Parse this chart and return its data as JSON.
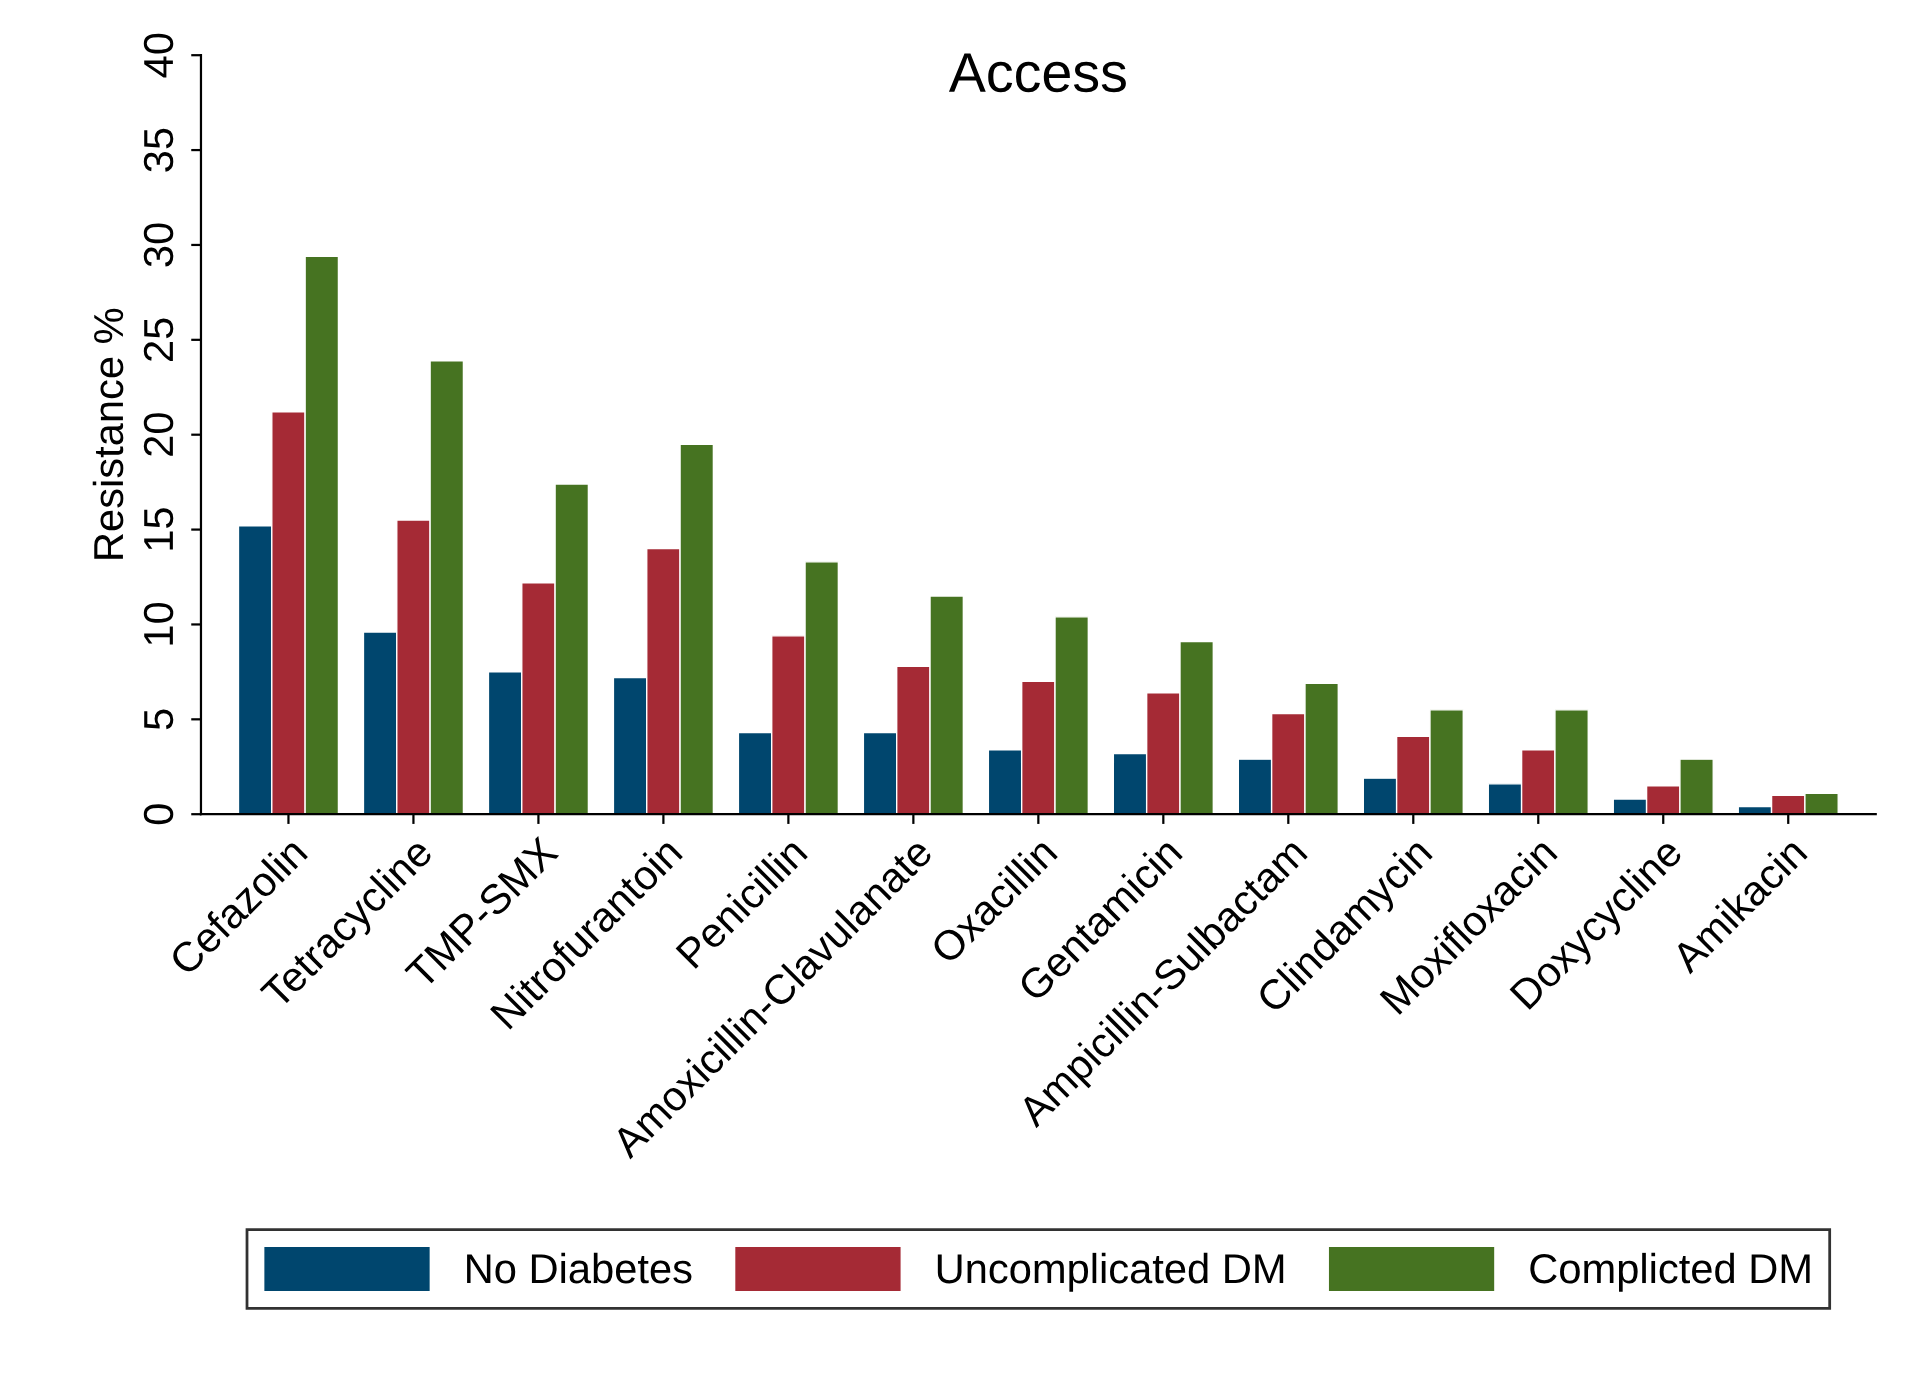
{
  "chart_data": {
    "type": "bar",
    "title": "Access",
    "ylabel": "Resistance %",
    "categories": [
      "Cefazolin",
      "Tetracycline",
      "TMP-SMX",
      "Nitrofurantoin",
      "Penicillin",
      "Amoxicillin-Clavulanate",
      "Oxacillin",
      "Gentamicin",
      "Ampicillin-Sulbactam",
      "Clindamycin",
      "Moxifloxacin",
      "Doxycycline",
      "Amikacin"
    ],
    "series": [
      {
        "name": "No Diabetes",
        "color": "#00466e",
        "values": [
          15.2,
          9.6,
          7.5,
          7.2,
          4.3,
          4.3,
          3.4,
          3.2,
          2.9,
          1.9,
          1.6,
          0.8,
          0.4
        ]
      },
      {
        "name": "Uncomplicated DM",
        "color": "#a52a35",
        "values": [
          21.2,
          15.5,
          12.2,
          14.0,
          9.4,
          7.8,
          7.0,
          6.4,
          5.3,
          4.1,
          3.4,
          1.5,
          1.0
        ]
      },
      {
        "name": "Complicted DM",
        "color": "#467321",
        "values": [
          29.4,
          23.9,
          17.4,
          19.5,
          13.3,
          11.5,
          10.4,
          9.1,
          6.9,
          5.5,
          5.5,
          2.9,
          1.1
        ]
      }
    ],
    "ylim": [
      0,
      40
    ],
    "yticks": [
      0,
      5,
      10,
      15,
      20,
      25,
      30,
      35,
      40
    ],
    "grid": false,
    "legend": "bottom"
  }
}
